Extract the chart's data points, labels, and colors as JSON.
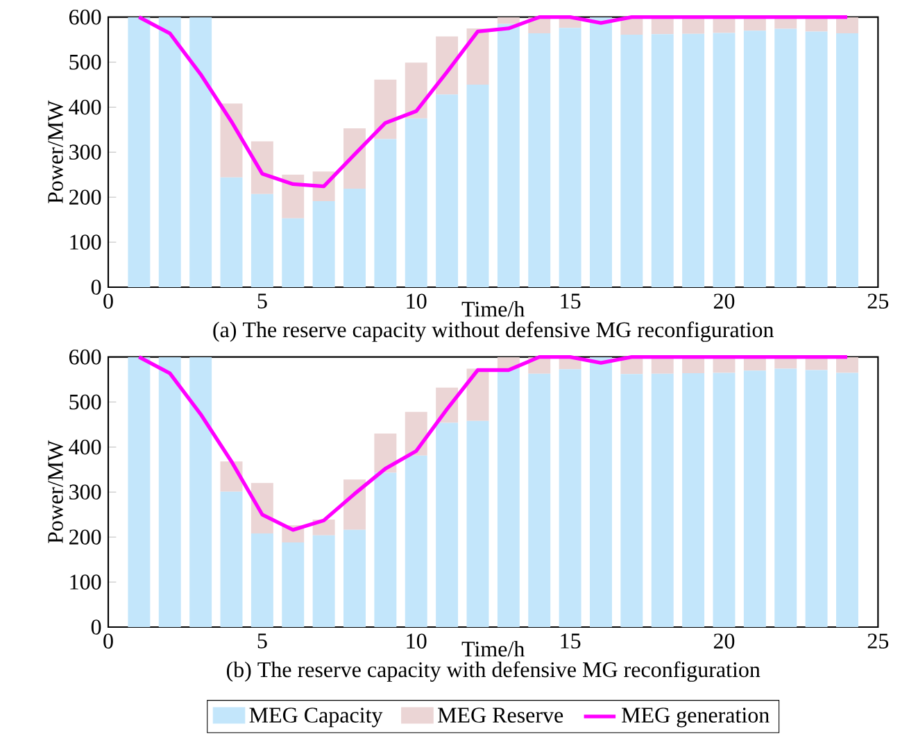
{
  "chart_data": [
    {
      "type": "bar",
      "title": "(a) The reserve capacity without defensive MG reconfiguration",
      "xlabel": "Time/h",
      "ylabel": "Power/MW",
      "stacked": true,
      "x": [
        1,
        2,
        3,
        4,
        5,
        6,
        7,
        8,
        9,
        10,
        11,
        12,
        13,
        14,
        15,
        16,
        17,
        18,
        19,
        20,
        21,
        22,
        23,
        24
      ],
      "xlim": [
        0,
        25
      ],
      "xticks": [
        0,
        5,
        10,
        15,
        20,
        25
      ],
      "ylim": [
        0,
        600
      ],
      "yticks": [
        0,
        100,
        200,
        300,
        400,
        500,
        600
      ],
      "series": [
        {
          "color": "#c3e6fb",
          "values": [
            600,
            600,
            600,
            244,
            207,
            153,
            191,
            219,
            329,
            375,
            428,
            450,
            585,
            564,
            576,
            600,
            561,
            562,
            563,
            565,
            570,
            574,
            568,
            564
          ]
        },
        {
          "color": "#ebd5d5",
          "values": [
            0,
            0,
            0,
            164,
            117,
            97,
            66,
            134,
            132,
            124,
            129,
            125,
            15,
            36,
            24,
            0,
            39,
            38,
            37,
            35,
            30,
            26,
            32,
            36
          ]
        },
        {
          "type": "line",
          "color": "#ff00ff",
          "values": [
            600,
            564,
            473,
            368,
            252,
            229,
            224,
            295,
            365,
            391,
            478,
            568,
            575,
            600,
            600,
            587,
            600,
            600,
            600,
            600,
            600,
            600,
            600,
            600
          ]
        }
      ]
    },
    {
      "type": "bar",
      "title": "(b) The reserve capacity with defensive MG reconfiguration",
      "xlabel": "Time/h",
      "ylabel": "Power/MW",
      "stacked": true,
      "legend": "bottom",
      "x": [
        1,
        2,
        3,
        4,
        5,
        6,
        7,
        8,
        9,
        10,
        11,
        12,
        13,
        14,
        15,
        16,
        17,
        18,
        19,
        20,
        21,
        22,
        23,
        24
      ],
      "xlim": [
        0,
        25
      ],
      "xticks": [
        0,
        5,
        10,
        15,
        20,
        25
      ],
      "ylim": [
        0,
        600
      ],
      "yticks": [
        0,
        100,
        200,
        300,
        400,
        500,
        600
      ],
      "series": [
        {
          "name": "MEG Capacity",
          "color": "#c3e6fb",
          "values": [
            600,
            600,
            600,
            301,
            208,
            188,
            204,
            216,
            343,
            381,
            454,
            458,
            575,
            563,
            573,
            600,
            562,
            563,
            564,
            565,
            570,
            574,
            571,
            565
          ]
        },
        {
          "name": "MEG Reserve",
          "color": "#ebd5d5",
          "values": [
            0,
            0,
            0,
            67,
            112,
            38,
            35,
            112,
            87,
            97,
            78,
            116,
            25,
            37,
            27,
            0,
            38,
            37,
            36,
            35,
            30,
            26,
            29,
            35
          ]
        },
        {
          "name": "MEG generation",
          "type": "line",
          "color": "#ff00ff",
          "values": [
            600,
            564,
            473,
            368,
            250,
            216,
            237,
            296,
            352,
            391,
            484,
            571,
            571,
            600,
            600,
            587,
            600,
            600,
            600,
            600,
            600,
            600,
            600,
            600
          ]
        }
      ]
    }
  ]
}
